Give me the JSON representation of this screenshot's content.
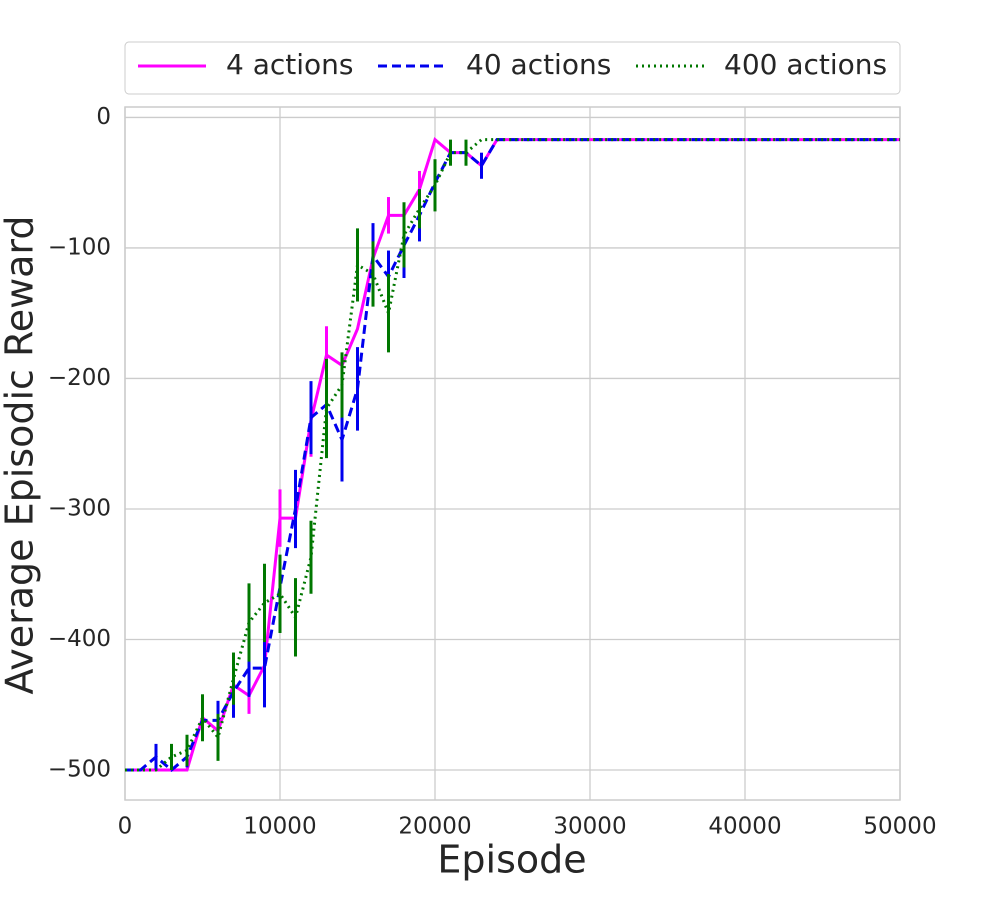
{
  "chart_data": {
    "type": "line",
    "xlabel": "Episode",
    "ylabel": "Average Episodic Reward",
    "x": [
      0,
      1000,
      2000,
      3000,
      4000,
      5000,
      6000,
      7000,
      8000,
      9000,
      10000,
      11000,
      12000,
      13000,
      14000,
      15000,
      16000,
      17000,
      18000,
      19000,
      20000,
      21000,
      22000,
      23000,
      24000,
      50000
    ],
    "series": [
      {
        "name": "4 actions",
        "color": "#ff00ff",
        "dash": "solid",
        "values": [
          -500,
          -500,
          -500,
          -500,
          -500,
          -460,
          -470,
          -435,
          -443,
          -420,
          -307,
          -307,
          -232,
          -182,
          -190,
          -162,
          -108,
          -75,
          -75,
          -55,
          -17,
          -27,
          -27,
          -37,
          -17,
          -17
        ],
        "errors": [
          0,
          0,
          0,
          0,
          0,
          0,
          0,
          0,
          14,
          0,
          22,
          0,
          28,
          22,
          0,
          0,
          0,
          14,
          0,
          14,
          0,
          0,
          0,
          0,
          0,
          0
        ]
      },
      {
        "name": "40 actions",
        "color": "#0000ee",
        "dash": "dashed",
        "values": [
          -500,
          -500,
          -490,
          -500,
          -490,
          -462,
          -462,
          -440,
          -422,
          -422,
          -360,
          -300,
          -230,
          -220,
          -247,
          -208,
          -106,
          -122,
          -98,
          -75,
          -50,
          -27,
          -27,
          -37,
          -17,
          -17
        ],
        "errors": [
          0,
          0,
          10,
          0,
          8,
          0,
          15,
          20,
          22,
          30,
          0,
          30,
          28,
          0,
          32,
          32,
          25,
          20,
          25,
          20,
          0,
          0,
          0,
          10,
          0,
          0
        ]
      },
      {
        "name": "400 actions",
        "color": "#007700",
        "dash": "dotted",
        "values": [
          -500,
          -500,
          -500,
          -490,
          -485,
          -460,
          -475,
          -430,
          -387,
          -372,
          -365,
          -383,
          -337,
          -223,
          -205,
          -113,
          -120,
          -150,
          -90,
          -70,
          -52,
          -27,
          -27,
          -17,
          -17,
          -17
        ],
        "errors": [
          0,
          0,
          0,
          10,
          12,
          18,
          18,
          20,
          30,
          30,
          30,
          30,
          28,
          38,
          25,
          28,
          25,
          30,
          25,
          15,
          20,
          10,
          10,
          0,
          0,
          0
        ]
      }
    ],
    "xlim": [
      0,
      50000
    ],
    "xticks": [
      0,
      10000,
      20000,
      30000,
      40000,
      50000
    ],
    "ylim": [
      -523,
      8
    ],
    "yticks": [
      {
        "value": -500,
        "label": "−500"
      },
      {
        "value": -400,
        "label": "−400"
      },
      {
        "value": -300,
        "label": "−300"
      },
      {
        "value": -200,
        "label": "−200"
      },
      {
        "value": -100,
        "label": "−100"
      },
      0
    ],
    "grid": true,
    "legend": "top"
  }
}
